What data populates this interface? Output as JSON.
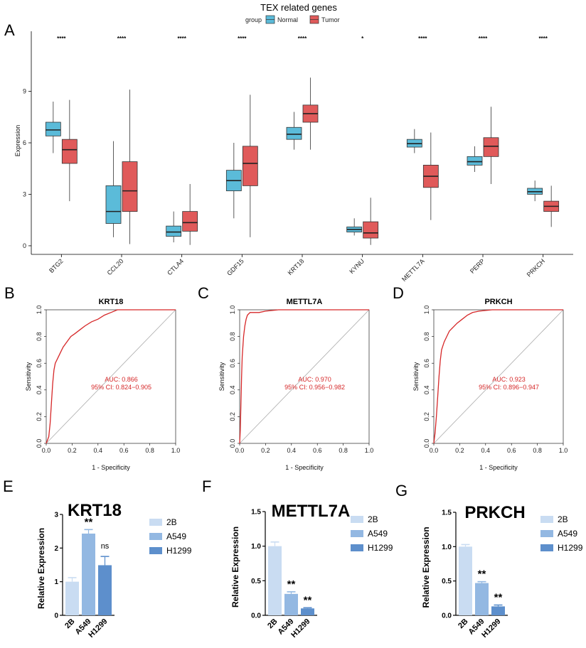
{
  "panel_letters": [
    "A",
    "B",
    "C",
    "D",
    "E",
    "F",
    "G"
  ],
  "colors": {
    "normal": "#5bbbd9",
    "tumor": "#e05a5a",
    "roc": "#d62728",
    "bar_2b": "#c9dcf2",
    "bar_a549": "#93b8e2",
    "bar_h1299": "#5d8fcc"
  },
  "chart_data": [
    {
      "type": "box",
      "title": "TEX related genes",
      "legend_title": "group",
      "legend": [
        "Normal",
        "Tumor"
      ],
      "xlabel": "",
      "ylabel": "Expression",
      "ylim": [
        -0.5,
        12.5
      ],
      "yticks": [
        0,
        3,
        6,
        9
      ],
      "categories": [
        "BTG2",
        "CCL20",
        "CTLA4",
        "GDF15",
        "KRT18",
        "KYNU",
        "METTL7A",
        "PERP",
        "PRKCH"
      ],
      "significance": [
        "****",
        "****",
        "****",
        "****",
        "****",
        "*",
        "****",
        "****",
        "****"
      ],
      "series": [
        {
          "name": "Normal",
          "boxes": [
            {
              "whislo": 5.4,
              "q1": 6.4,
              "med": 6.75,
              "q3": 7.2,
              "whishi": 8.4
            },
            {
              "whislo": 0.5,
              "q1": 1.3,
              "med": 2.0,
              "q3": 3.5,
              "whishi": 6.1
            },
            {
              "whislo": 0.2,
              "q1": 0.55,
              "med": 0.8,
              "q3": 1.15,
              "whishi": 2.0
            },
            {
              "whislo": 1.6,
              "q1": 3.2,
              "med": 3.8,
              "q3": 4.4,
              "whishi": 6.0
            },
            {
              "whislo": 5.6,
              "q1": 6.2,
              "med": 6.5,
              "q3": 6.9,
              "whishi": 7.8
            },
            {
              "whislo": 0.6,
              "q1": 0.8,
              "med": 0.95,
              "q3": 1.1,
              "whishi": 1.6
            },
            {
              "whislo": 5.4,
              "q1": 5.75,
              "med": 5.95,
              "q3": 6.2,
              "whishi": 6.8
            },
            {
              "whislo": 4.3,
              "q1": 4.7,
              "med": 4.9,
              "q3": 5.2,
              "whishi": 5.8
            },
            {
              "whislo": 2.6,
              "q1": 3.0,
              "med": 3.15,
              "q3": 3.35,
              "whishi": 3.8
            }
          ]
        },
        {
          "name": "Tumor",
          "boxes": [
            {
              "whislo": 2.6,
              "q1": 4.8,
              "med": 5.6,
              "q3": 6.2,
              "whishi": 8.5
            },
            {
              "whislo": 0.1,
              "q1": 2.0,
              "med": 3.2,
              "q3": 4.9,
              "whishi": 9.1
            },
            {
              "whislo": 0.05,
              "q1": 0.85,
              "med": 1.35,
              "q3": 2.0,
              "whishi": 3.6
            },
            {
              "whislo": 0.5,
              "q1": 3.5,
              "med": 4.8,
              "q3": 5.8,
              "whishi": 8.8
            },
            {
              "whislo": 5.6,
              "q1": 7.2,
              "med": 7.7,
              "q3": 8.2,
              "whishi": 9.8
            },
            {
              "whislo": 0.05,
              "q1": 0.45,
              "med": 0.75,
              "q3": 1.4,
              "whishi": 2.8
            },
            {
              "whislo": 1.5,
              "q1": 3.4,
              "med": 4.05,
              "q3": 4.7,
              "whishi": 6.6
            },
            {
              "whislo": 3.6,
              "q1": 5.2,
              "med": 5.8,
              "q3": 6.3,
              "whishi": 8.1
            },
            {
              "whislo": 1.1,
              "q1": 2.0,
              "med": 2.3,
              "q3": 2.6,
              "whishi": 3.5
            }
          ]
        }
      ]
    },
    {
      "type": "line",
      "subtype": "roc",
      "title": "KRT18",
      "xlabel": "1 - Specificity",
      "ylabel": "Sensitivity",
      "xlim": [
        0,
        1
      ],
      "ylim": [
        0,
        1
      ],
      "ticks": [
        "0.0",
        "0.2",
        "0.4",
        "0.6",
        "0.8",
        "1.0"
      ],
      "auc_text": "AUC: 0.866",
      "ci_text": "95% CI: 0.824−0.905",
      "x": [
        0,
        0.02,
        0.03,
        0.04,
        0.05,
        0.06,
        0.07,
        0.09,
        0.11,
        0.13,
        0.16,
        0.19,
        0.22,
        0.26,
        0.3,
        0.35,
        0.4,
        0.45,
        0.5,
        0.55,
        0.6,
        0.8,
        1.0
      ],
      "y": [
        0,
        0.05,
        0.15,
        0.3,
        0.45,
        0.55,
        0.6,
        0.64,
        0.68,
        0.72,
        0.76,
        0.8,
        0.82,
        0.85,
        0.88,
        0.91,
        0.93,
        0.96,
        0.98,
        1.0,
        1.0,
        1.0,
        1.0
      ]
    },
    {
      "type": "line",
      "subtype": "roc",
      "title": "METTL7A",
      "xlabel": "1 - Specificity",
      "ylabel": "Sensitivity",
      "xlim": [
        0,
        1
      ],
      "ylim": [
        0,
        1
      ],
      "ticks": [
        "0.0",
        "0.2",
        "0.4",
        "0.6",
        "0.8",
        "1.0"
      ],
      "auc_text": "AUC: 0.970",
      "ci_text": "95% CI: 0.956−0.982",
      "x": [
        0,
        0.005,
        0.01,
        0.015,
        0.02,
        0.03,
        0.04,
        0.05,
        0.06,
        0.08,
        0.1,
        0.15,
        0.2,
        0.3,
        0.5,
        1.0
      ],
      "y": [
        0,
        0.1,
        0.3,
        0.5,
        0.65,
        0.8,
        0.88,
        0.93,
        0.96,
        0.98,
        0.98,
        0.98,
        0.99,
        1.0,
        1.0,
        1.0
      ]
    },
    {
      "type": "line",
      "subtype": "roc",
      "title": "PRKCH",
      "xlabel": "1 - Specificity",
      "ylabel": "Sensitivity",
      "xlim": [
        0,
        1
      ],
      "ylim": [
        0,
        1
      ],
      "ticks": [
        "0.0",
        "0.2",
        "0.4",
        "0.6",
        "0.8",
        "1.0"
      ],
      "auc_text": "AUC: 0.923",
      "ci_text": "95% CI: 0.896−0.947",
      "x": [
        0,
        0.01,
        0.02,
        0.03,
        0.04,
        0.05,
        0.06,
        0.08,
        0.1,
        0.12,
        0.15,
        0.18,
        0.22,
        0.26,
        0.3,
        0.35,
        0.45,
        0.55,
        0.7,
        1.0
      ],
      "y": [
        0,
        0.08,
        0.2,
        0.35,
        0.5,
        0.62,
        0.7,
        0.76,
        0.8,
        0.84,
        0.87,
        0.9,
        0.93,
        0.96,
        0.98,
        0.99,
        1.0,
        1.0,
        1.0,
        1.0
      ]
    },
    {
      "type": "bar",
      "title": "KRT18",
      "ylabel": "Relative Expression",
      "ylim": [
        0,
        3
      ],
      "yticks": [
        "0",
        "1",
        "2",
        "3"
      ],
      "categories": [
        "2B",
        "A549",
        "H1299"
      ],
      "values": [
        1.0,
        2.43,
        1.49
      ],
      "errors": [
        0.12,
        0.12,
        0.26
      ],
      "significance": [
        "",
        "**",
        "ns"
      ],
      "legend": [
        "2B",
        "A549",
        "H1299"
      ]
    },
    {
      "type": "bar",
      "title": "METTL7A",
      "ylabel": "Relative Expression",
      "ylim": [
        0,
        1.5
      ],
      "yticks": [
        "0.0",
        "0.5",
        "1.0",
        "1.5"
      ],
      "categories": [
        "2B",
        "A549",
        "H1299"
      ],
      "values": [
        1.0,
        0.31,
        0.1
      ],
      "errors": [
        0.06,
        0.03,
        0.01
      ],
      "significance": [
        "",
        "**",
        "**"
      ],
      "legend": [
        "2B",
        "A549",
        "H1299"
      ]
    },
    {
      "type": "bar",
      "title": "PRKCH",
      "ylabel": "Relative Expression",
      "ylim": [
        0,
        1.5
      ],
      "yticks": [
        "0.0",
        "0.5",
        "1.0",
        "1.5"
      ],
      "categories": [
        "2B",
        "A549",
        "H1299"
      ],
      "values": [
        1.0,
        0.47,
        0.13
      ],
      "errors": [
        0.03,
        0.02,
        0.02
      ],
      "significance": [
        "",
        "**",
        "**"
      ],
      "legend": [
        "2B",
        "A549",
        "H1299"
      ]
    }
  ]
}
